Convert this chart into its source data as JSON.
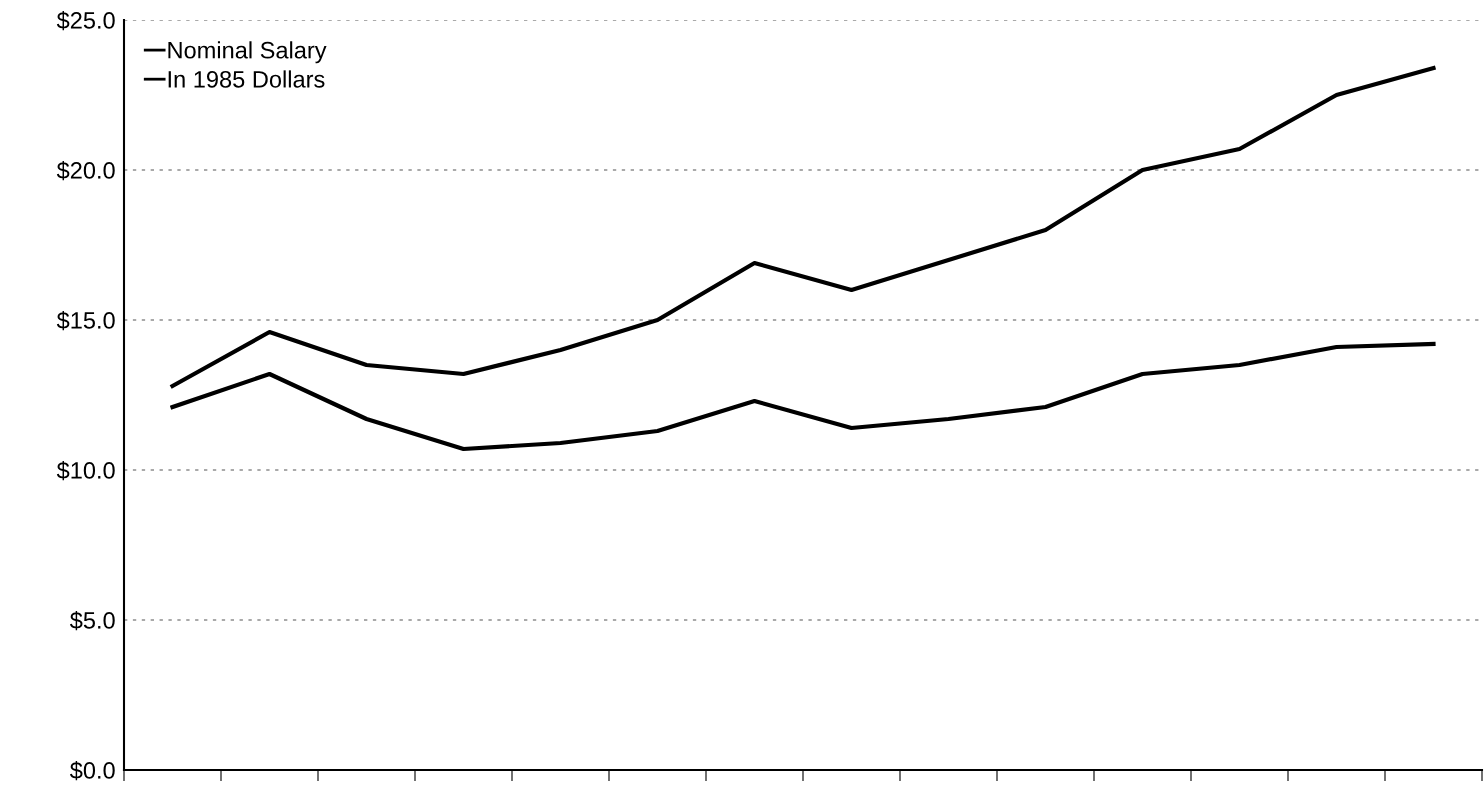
{
  "chart_data": {
    "type": "line",
    "categories": [
      null,
      null,
      null,
      null,
      null,
      null,
      null,
      null,
      null,
      null,
      null,
      null,
      null,
      null
    ],
    "series": [
      {
        "name": "Nominal Salary",
        "color": "#000000",
        "marker": "none",
        "values": [
          12.8,
          14.6,
          13.5,
          13.2,
          14.0,
          15.0,
          16.9,
          16.0,
          17.0,
          18.0,
          20.0,
          20.7,
          22.5,
          23.4
        ]
      },
      {
        "name": "In 1985 Dollars",
        "color": "#000000",
        "marker": "none",
        "values": [
          12.1,
          13.2,
          11.7,
          10.7,
          10.9,
          11.3,
          12.3,
          11.4,
          11.7,
          12.1,
          13.2,
          13.5,
          14.1,
          14.2
        ]
      }
    ],
    "ylim": [
      0,
      25
    ],
    "yticks": [
      {
        "value": 0,
        "label": "$0.0"
      },
      {
        "value": 5,
        "label": "$5.0"
      },
      {
        "value": 10,
        "label": "$10.0"
      },
      {
        "value": 15,
        "label": "$15.0"
      },
      {
        "value": 20,
        "label": "$20.0"
      },
      {
        "value": 25,
        "label": "$25.0"
      }
    ],
    "grid": "y",
    "legend": "top left",
    "tick_labels": "y",
    "line_style": "solid"
  }
}
